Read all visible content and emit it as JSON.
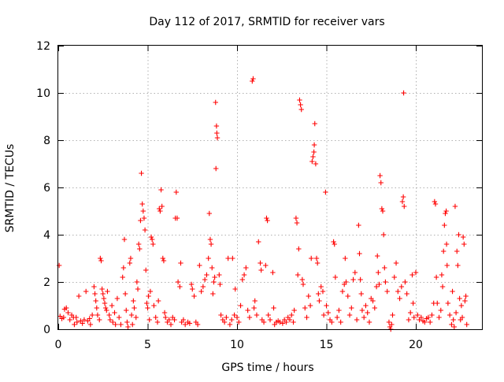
{
  "chart_data": {
    "type": "scatter",
    "title": "Day 112 of 2017, SRMTID for receiver vars",
    "xlabel": "GPS time / hours",
    "ylabel": "SRMTID / TECUs",
    "xlim": [
      0,
      23.7
    ],
    "ylim": [
      0,
      12
    ],
    "xticks": [
      0,
      5,
      10,
      15,
      20
    ],
    "yticks": [
      0,
      2,
      4,
      6,
      8,
      10,
      12
    ],
    "grid": true,
    "legend": "none",
    "marker": "plus",
    "point_color": "#ff0000",
    "series": [
      {
        "points": [
          [
            0.05,
            2.7
          ],
          [
            0.1,
            0.55
          ],
          [
            0.2,
            0.45
          ],
          [
            0.3,
            0.5
          ],
          [
            0.35,
            0.85
          ],
          [
            0.45,
            0.9
          ],
          [
            0.55,
            0.7
          ],
          [
            0.65,
            0.4
          ],
          [
            0.75,
            0.6
          ],
          [
            0.85,
            0.5
          ],
          [
            0.9,
            0.2
          ],
          [
            1.0,
            0.5
          ],
          [
            1.05,
            0.3
          ],
          [
            1.15,
            1.4
          ],
          [
            1.25,
            0.35
          ],
          [
            1.35,
            0.25
          ],
          [
            1.45,
            0.4
          ],
          [
            1.55,
            1.6
          ],
          [
            1.65,
            0.35
          ],
          [
            1.75,
            0.45
          ],
          [
            1.8,
            0.2
          ],
          [
            1.9,
            0.6
          ],
          [
            2.0,
            1.8
          ],
          [
            2.05,
            1.5
          ],
          [
            2.1,
            1.2
          ],
          [
            2.15,
            0.9
          ],
          [
            2.2,
            0.6
          ],
          [
            2.3,
            0.4
          ],
          [
            2.35,
            3.0
          ],
          [
            2.4,
            2.9
          ],
          [
            2.45,
            1.7
          ],
          [
            2.5,
            1.5
          ],
          [
            2.55,
            1.3
          ],
          [
            2.6,
            1.1
          ],
          [
            2.65,
            0.9
          ],
          [
            2.7,
            0.8
          ],
          [
            2.75,
            1.6
          ],
          [
            2.85,
            0.6
          ],
          [
            2.9,
            0.4
          ],
          [
            3.0,
            1.0
          ],
          [
            3.05,
            0.3
          ],
          [
            3.15,
            0.7
          ],
          [
            3.2,
            0.2
          ],
          [
            3.3,
            1.3
          ],
          [
            3.4,
            0.5
          ],
          [
            3.5,
            0.2
          ],
          [
            3.6,
            2.2
          ],
          [
            3.65,
            2.6
          ],
          [
            3.7,
            3.8
          ],
          [
            3.75,
            1.5
          ],
          [
            3.8,
            0.8
          ],
          [
            3.85,
            0.3
          ],
          [
            3.9,
            0.1
          ],
          [
            4.0,
            2.8
          ],
          [
            4.05,
            3.0
          ],
          [
            4.1,
            0.6
          ],
          [
            4.15,
            0.2
          ],
          [
            4.2,
            1.2
          ],
          [
            4.25,
            0.9
          ],
          [
            4.35,
            0.5
          ],
          [
            4.4,
            2.0
          ],
          [
            4.45,
            1.7
          ],
          [
            4.5,
            3.6
          ],
          [
            4.55,
            3.4
          ],
          [
            4.6,
            4.6
          ],
          [
            4.65,
            6.6
          ],
          [
            4.7,
            5.3
          ],
          [
            4.75,
            5.0
          ],
          [
            4.8,
            4.7
          ],
          [
            4.85,
            4.2
          ],
          [
            4.9,
            2.5
          ],
          [
            4.95,
            1.1
          ],
          [
            5.0,
            0.9
          ],
          [
            5.05,
            1.4
          ],
          [
            5.1,
            0.4
          ],
          [
            5.15,
            1.6
          ],
          [
            5.2,
            3.9
          ],
          [
            5.25,
            3.8
          ],
          [
            5.3,
            3.6
          ],
          [
            5.35,
            1.0
          ],
          [
            5.45,
            0.5
          ],
          [
            5.55,
            0.3
          ],
          [
            5.6,
            1.2
          ],
          [
            5.65,
            5.1
          ],
          [
            5.7,
            5.0
          ],
          [
            5.75,
            5.9
          ],
          [
            5.8,
            5.2
          ],
          [
            5.85,
            3.0
          ],
          [
            5.9,
            2.9
          ],
          [
            5.95,
            0.7
          ],
          [
            6.0,
            0.5
          ],
          [
            6.1,
            0.3
          ],
          [
            6.2,
            0.4
          ],
          [
            6.3,
            0.2
          ],
          [
            6.4,
            0.5
          ],
          [
            6.5,
            0.4
          ],
          [
            6.55,
            4.7
          ],
          [
            6.6,
            5.8
          ],
          [
            6.65,
            4.7
          ],
          [
            6.7,
            2.0
          ],
          [
            6.8,
            1.8
          ],
          [
            6.85,
            2.8
          ],
          [
            6.9,
            0.3
          ],
          [
            7.0,
            0.4
          ],
          [
            7.1,
            0.2
          ],
          [
            7.25,
            0.3
          ],
          [
            7.35,
            0.25
          ],
          [
            7.45,
            1.9
          ],
          [
            7.5,
            1.7
          ],
          [
            7.6,
            1.4
          ],
          [
            7.7,
            0.3
          ],
          [
            7.8,
            0.2
          ],
          [
            7.9,
            2.7
          ],
          [
            8.0,
            1.6
          ],
          [
            8.1,
            1.8
          ],
          [
            8.2,
            2.1
          ],
          [
            8.3,
            2.3
          ],
          [
            8.4,
            3.0
          ],
          [
            8.45,
            4.9
          ],
          [
            8.5,
            3.8
          ],
          [
            8.55,
            3.6
          ],
          [
            8.6,
            2.6
          ],
          [
            8.65,
            1.5
          ],
          [
            8.7,
            2.0
          ],
          [
            8.75,
            2.2
          ],
          [
            8.8,
            9.6
          ],
          [
            8.82,
            6.8
          ],
          [
            8.85,
            8.6
          ],
          [
            8.87,
            8.3
          ],
          [
            8.9,
            8.1
          ],
          [
            9.0,
            2.3
          ],
          [
            9.05,
            1.9
          ],
          [
            9.1,
            0.6
          ],
          [
            9.2,
            0.4
          ],
          [
            9.3,
            0.3
          ],
          [
            9.4,
            0.5
          ],
          [
            9.5,
            3.0
          ],
          [
            9.6,
            0.2
          ],
          [
            9.7,
            0.4
          ],
          [
            9.75,
            3.0
          ],
          [
            9.85,
            0.6
          ],
          [
            9.9,
            1.7
          ],
          [
            10.0,
            0.5
          ],
          [
            10.1,
            0.3
          ],
          [
            10.2,
            1.0
          ],
          [
            10.3,
            2.1
          ],
          [
            10.4,
            2.3
          ],
          [
            10.5,
            2.6
          ],
          [
            10.6,
            0.8
          ],
          [
            10.7,
            0.5
          ],
          [
            10.85,
            10.5
          ],
          [
            10.9,
            10.6
          ],
          [
            10.95,
            0.9
          ],
          [
            11.0,
            1.2
          ],
          [
            11.1,
            0.6
          ],
          [
            11.2,
            3.7
          ],
          [
            11.3,
            2.8
          ],
          [
            11.35,
            2.5
          ],
          [
            11.4,
            0.4
          ],
          [
            11.5,
            0.3
          ],
          [
            11.6,
            2.7
          ],
          [
            11.65,
            4.7
          ],
          [
            11.7,
            4.6
          ],
          [
            11.75,
            0.6
          ],
          [
            11.85,
            0.4
          ],
          [
            12.0,
            2.4
          ],
          [
            12.05,
            0.9
          ],
          [
            12.1,
            0.2
          ],
          [
            12.2,
            0.3
          ],
          [
            12.3,
            0.35
          ],
          [
            12.4,
            0.3
          ],
          [
            12.55,
            0.25
          ],
          [
            12.65,
            0.4
          ],
          [
            12.75,
            0.3
          ],
          [
            12.85,
            0.5
          ],
          [
            12.95,
            0.4
          ],
          [
            13.05,
            0.6
          ],
          [
            13.15,
            0.3
          ],
          [
            13.2,
            0.8
          ],
          [
            13.3,
            4.7
          ],
          [
            13.35,
            4.5
          ],
          [
            13.4,
            2.3
          ],
          [
            13.45,
            3.4
          ],
          [
            13.5,
            9.7
          ],
          [
            13.55,
            9.5
          ],
          [
            13.6,
            9.3
          ],
          [
            13.65,
            2.1
          ],
          [
            13.7,
            1.9
          ],
          [
            13.8,
            0.9
          ],
          [
            13.9,
            0.5
          ],
          [
            14.0,
            1.4
          ],
          [
            14.1,
            1.0
          ],
          [
            14.15,
            3.0
          ],
          [
            14.2,
            7.1
          ],
          [
            14.25,
            7.3
          ],
          [
            14.3,
            7.5
          ],
          [
            14.32,
            7.8
          ],
          [
            14.35,
            8.7
          ],
          [
            14.4,
            7.0
          ],
          [
            14.45,
            3.0
          ],
          [
            14.5,
            2.8
          ],
          [
            14.55,
            1.5
          ],
          [
            14.6,
            1.2
          ],
          [
            14.7,
            1.8
          ],
          [
            14.8,
            1.6
          ],
          [
            14.85,
            0.6
          ],
          [
            14.95,
            5.8
          ],
          [
            15.0,
            1.0
          ],
          [
            15.1,
            0.7
          ],
          [
            15.2,
            0.4
          ],
          [
            15.3,
            0.3
          ],
          [
            15.4,
            3.7
          ],
          [
            15.45,
            3.6
          ],
          [
            15.5,
            2.2
          ],
          [
            15.6,
            0.5
          ],
          [
            15.7,
            0.8
          ],
          [
            15.8,
            0.3
          ],
          [
            15.9,
            1.6
          ],
          [
            16.0,
            1.9
          ],
          [
            16.05,
            3.0
          ],
          [
            16.1,
            2.0
          ],
          [
            16.2,
            1.4
          ],
          [
            16.3,
            0.6
          ],
          [
            16.4,
            0.9
          ],
          [
            16.5,
            2.1
          ],
          [
            16.6,
            2.4
          ],
          [
            16.7,
            0.4
          ],
          [
            16.8,
            4.4
          ],
          [
            16.85,
            3.2
          ],
          [
            16.9,
            2.1
          ],
          [
            16.95,
            1.5
          ],
          [
            17.0,
            0.8
          ],
          [
            17.1,
            0.5
          ],
          [
            17.2,
            1.0
          ],
          [
            17.3,
            0.7
          ],
          [
            17.4,
            0.3
          ],
          [
            17.5,
            1.3
          ],
          [
            17.6,
            1.2
          ],
          [
            17.7,
            0.9
          ],
          [
            17.8,
            1.8
          ],
          [
            17.85,
            3.1
          ],
          [
            17.9,
            2.4
          ],
          [
            17.95,
            1.9
          ],
          [
            18.0,
            6.5
          ],
          [
            18.05,
            6.2
          ],
          [
            18.1,
            5.1
          ],
          [
            18.15,
            5.0
          ],
          [
            18.2,
            4.0
          ],
          [
            18.25,
            2.6
          ],
          [
            18.3,
            2.0
          ],
          [
            18.4,
            1.6
          ],
          [
            18.5,
            0.3
          ],
          [
            18.55,
            0.1
          ],
          [
            18.6,
            0.0
          ],
          [
            18.65,
            0.2
          ],
          [
            18.7,
            0.6
          ],
          [
            18.8,
            2.2
          ],
          [
            18.9,
            2.8
          ],
          [
            19.0,
            1.6
          ],
          [
            19.1,
            1.3
          ],
          [
            19.2,
            1.8
          ],
          [
            19.25,
            5.4
          ],
          [
            19.3,
            5.6
          ],
          [
            19.32,
            10.0
          ],
          [
            19.35,
            5.2
          ],
          [
            19.4,
            2.0
          ],
          [
            19.5,
            1.5
          ],
          [
            19.6,
            0.4
          ],
          [
            19.7,
            0.7
          ],
          [
            19.8,
            2.3
          ],
          [
            19.85,
            1.1
          ],
          [
            19.9,
            0.5
          ],
          [
            20.0,
            2.4
          ],
          [
            20.1,
            0.6
          ],
          [
            20.2,
            0.4
          ],
          [
            20.3,
            0.5
          ],
          [
            20.4,
            0.35
          ],
          [
            20.5,
            0.3
          ],
          [
            20.6,
            0.45
          ],
          [
            20.7,
            0.5
          ],
          [
            20.8,
            0.3
          ],
          [
            20.9,
            0.6
          ],
          [
            21.0,
            1.1
          ],
          [
            21.05,
            5.4
          ],
          [
            21.1,
            5.3
          ],
          [
            21.15,
            2.2
          ],
          [
            21.2,
            1.1
          ],
          [
            21.3,
            0.5
          ],
          [
            21.4,
            0.8
          ],
          [
            21.45,
            2.3
          ],
          [
            21.5,
            1.8
          ],
          [
            21.55,
            3.3
          ],
          [
            21.6,
            4.4
          ],
          [
            21.65,
            4.9
          ],
          [
            21.7,
            5.0
          ],
          [
            21.72,
            3.6
          ],
          [
            21.75,
            2.7
          ],
          [
            21.8,
            1.1
          ],
          [
            21.9,
            0.6
          ],
          [
            22.0,
            0.2
          ],
          [
            22.05,
            1.6
          ],
          [
            22.1,
            0.4
          ],
          [
            22.15,
            0.1
          ],
          [
            22.2,
            5.2
          ],
          [
            22.25,
            0.7
          ],
          [
            22.3,
            3.3
          ],
          [
            22.35,
            2.7
          ],
          [
            22.4,
            4.0
          ],
          [
            22.45,
            1.3
          ],
          [
            22.5,
            0.4
          ],
          [
            22.55,
            1.0
          ],
          [
            22.6,
            0.5
          ],
          [
            22.65,
            3.9
          ],
          [
            22.7,
            3.6
          ],
          [
            22.75,
            1.2
          ],
          [
            22.8,
            1.4
          ],
          [
            22.85,
            0.2
          ]
        ]
      }
    ]
  }
}
